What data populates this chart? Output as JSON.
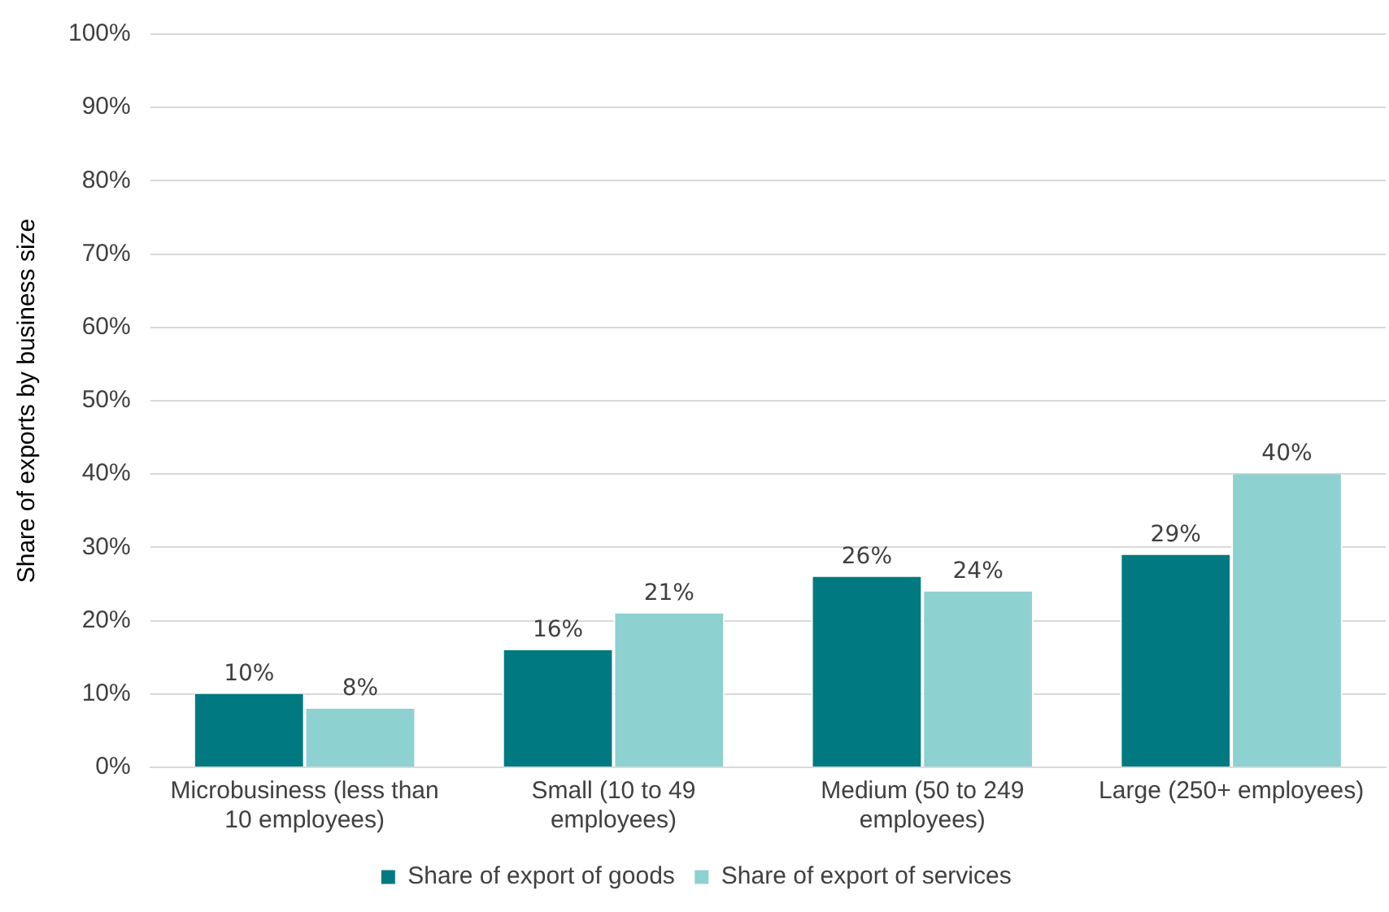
{
  "chart_data": {
    "type": "bar",
    "ylabel": "Share of exports by business size",
    "categories": [
      "Microbusiness (less than 10 employees)",
      "Small (10 to 49 employees)",
      "Medium (50 to 249 employees)",
      "Large (250+ employees)"
    ],
    "series": [
      {
        "name": "Share of export of goods",
        "color": "#007a80",
        "values": [
          10,
          16,
          26,
          29
        ],
        "value_labels": [
          "10%",
          "16%",
          "26%",
          "29%"
        ]
      },
      {
        "name": "Share of export of services",
        "color": "#8dd1d1",
        "values": [
          8,
          21,
          24,
          40
        ],
        "value_labels": [
          "8%",
          "21%",
          "24%",
          "40%"
        ]
      }
    ],
    "ylim": [
      0,
      100
    ],
    "yticks": [
      {
        "value": 0,
        "label": "0%"
      },
      {
        "value": 10,
        "label": "10%"
      },
      {
        "value": 20,
        "label": "20%"
      },
      {
        "value": 30,
        "label": "30%"
      },
      {
        "value": 40,
        "label": "40%"
      },
      {
        "value": 50,
        "label": "50%"
      },
      {
        "value": 60,
        "label": "60%"
      },
      {
        "value": 70,
        "label": "70%"
      },
      {
        "value": 80,
        "label": "80%"
      },
      {
        "value": 90,
        "label": "90%"
      },
      {
        "value": 100,
        "label": "100%"
      }
    ],
    "grid": "y",
    "legend": "bottom"
  }
}
